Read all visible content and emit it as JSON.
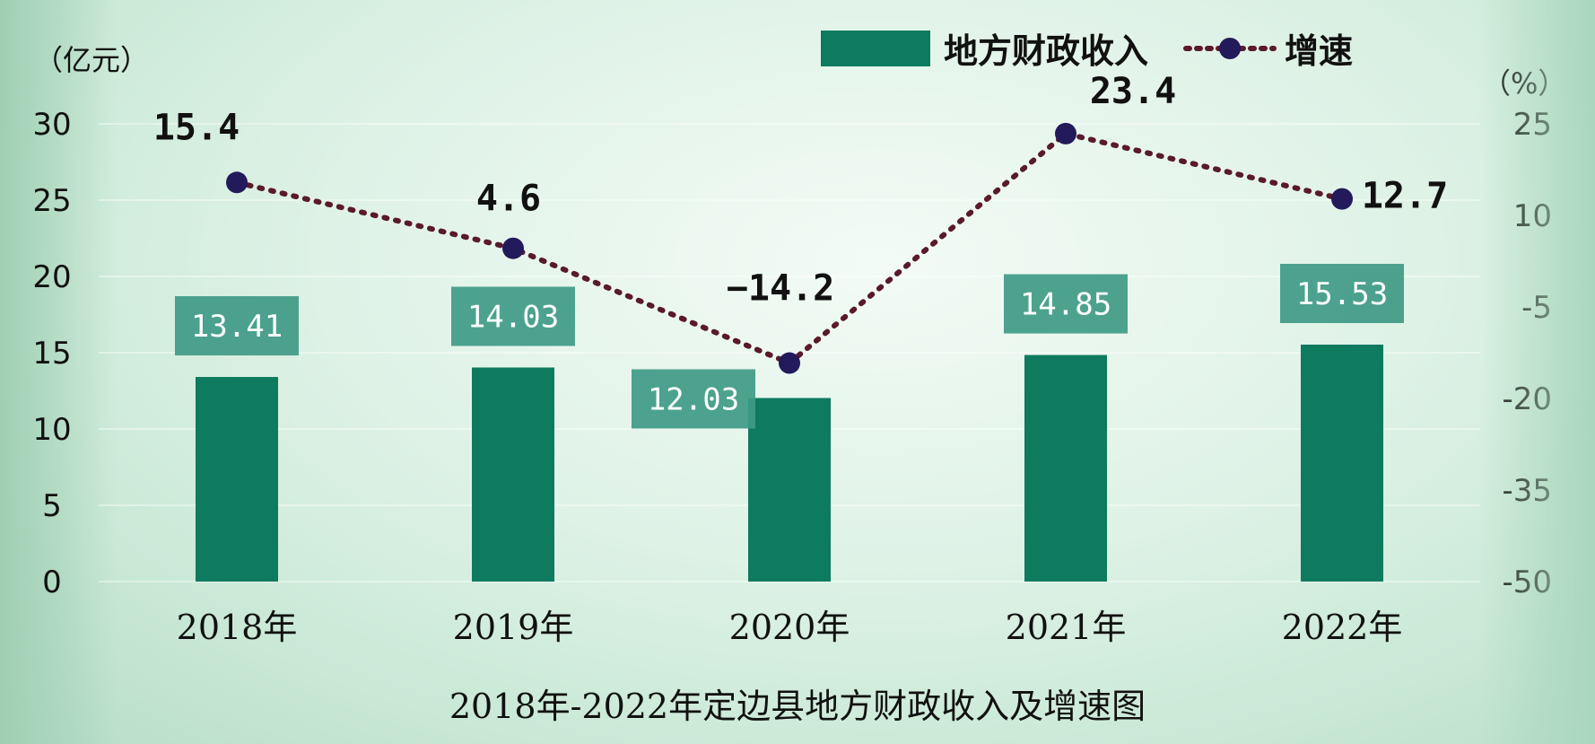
{
  "chart_data": {
    "type": "bar",
    "title": "2018年-2022年定边县地方财政收入及增速图",
    "categories": [
      "2018年",
      "2019年",
      "2020年",
      "2021年",
      "2022年"
    ],
    "left_axis": {
      "unit": "（亿元）",
      "ylim": [
        0,
        30
      ],
      "ticks": [
        0,
        5,
        10,
        15,
        20,
        25,
        30
      ]
    },
    "right_axis": {
      "unit": "（%）",
      "ylim": [
        -50,
        25
      ],
      "ticks": [
        -50,
        -35,
        -20,
        -5,
        10,
        25
      ]
    },
    "series": [
      {
        "name": "地方财政收入",
        "type": "bar",
        "axis": "left",
        "color": "#0e7a5e",
        "values": [
          13.41,
          14.03,
          12.03,
          14.85,
          15.53
        ],
        "labels": [
          "13.41",
          "14.03",
          "12.03",
          "14.85",
          "15.53"
        ]
      },
      {
        "name": "增速",
        "type": "line",
        "axis": "right",
        "color": "#5a1a2a",
        "marker_color": "#221a5a",
        "values": [
          15.4,
          4.6,
          -14.2,
          23.4,
          12.7
        ],
        "labels": [
          "15.4",
          "4.6",
          "−14.2",
          "23.4",
          "12.7"
        ]
      }
    ],
    "grid": false,
    "legend_position": "top"
  }
}
